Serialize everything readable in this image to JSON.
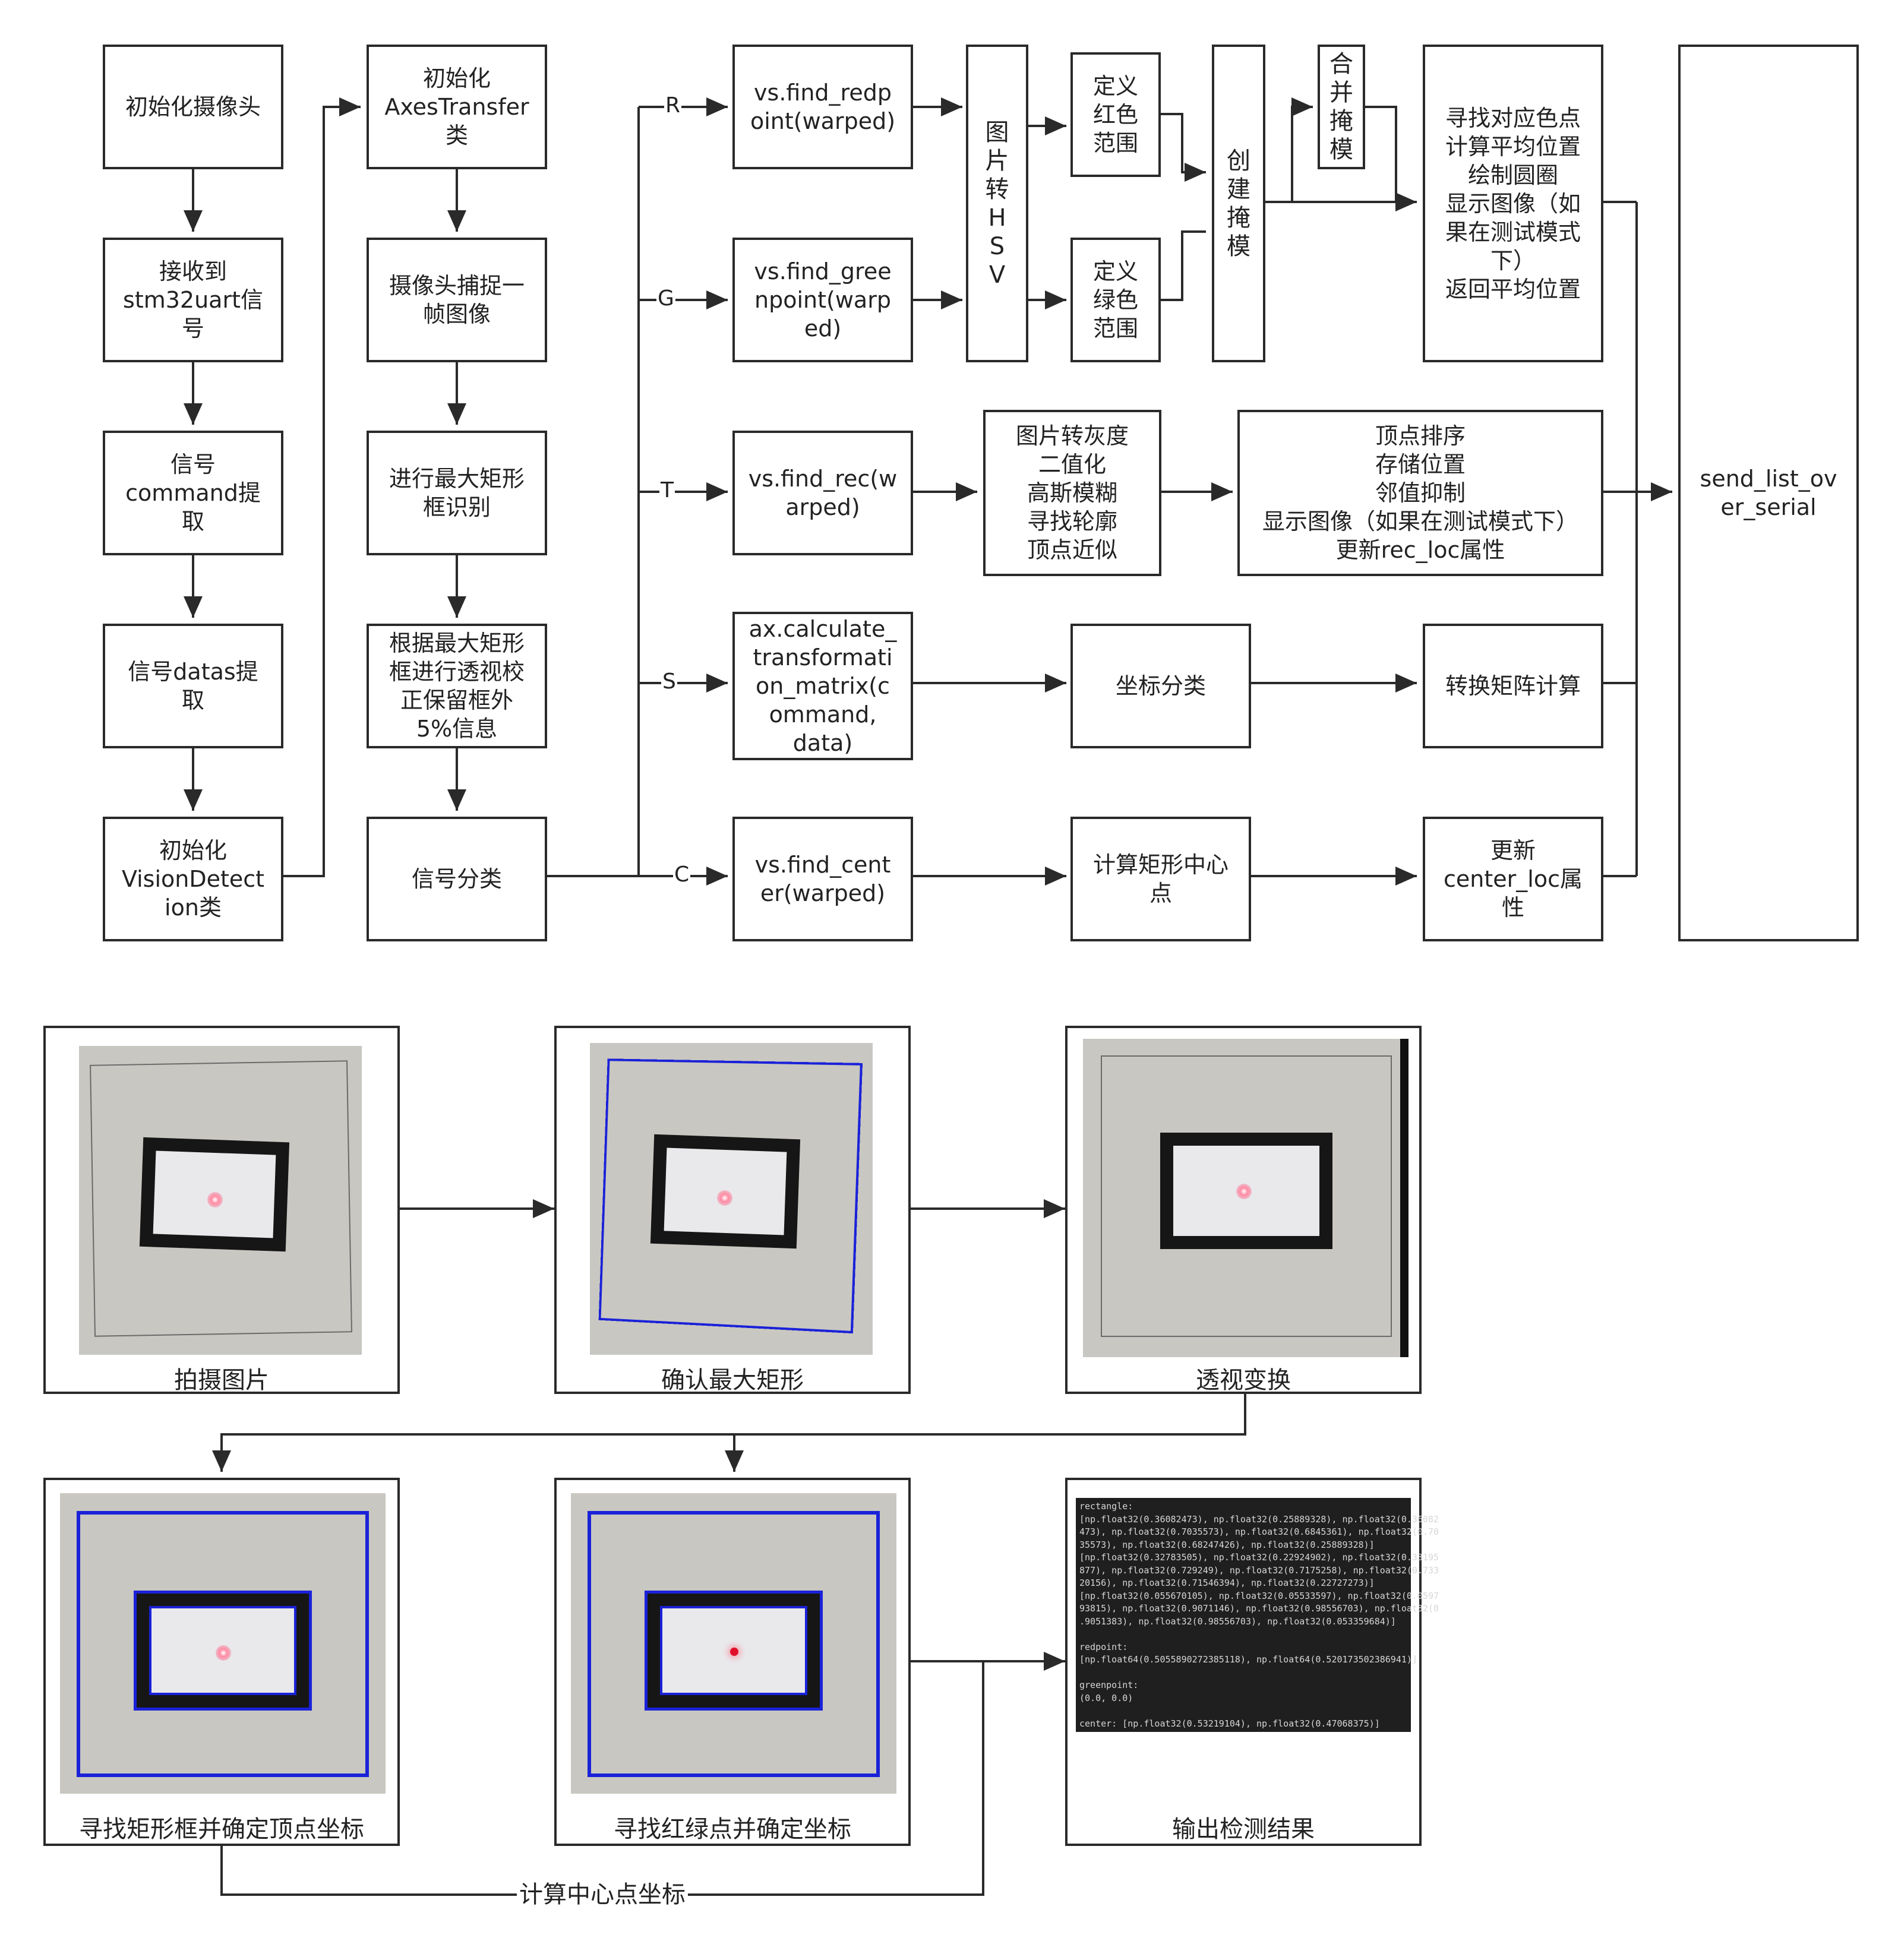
{
  "flow": {
    "init_camera": "初始化摄像头",
    "receive_uart": "接收到\nstm32uart信\n号",
    "extract_command": "信号\ncommand提\n取",
    "extract_datas": "信号datas提\n取",
    "init_vision": "初始化\nVisionDetect\nion类",
    "init_axes": "初始化\nAxesTransfer\n类",
    "capture_frame": "摄像头捕捉一\n帧图像",
    "max_rect": "进行最大矩形\n框识别",
    "perspective": "根据最大矩形\n框进行透视校\n正保留框外\n5%信息",
    "classify": "信号分类",
    "find_redpoint": "vs.find_redp\noint(warped)",
    "find_greenpoint": "vs.find_gree\nnpoint(warp\ned)",
    "find_rec": "vs.find_rec(w\narped)",
    "calc_matrix": "ax.calculate_\ntransformati\non_matrix(c\nommand,\ndata)",
    "find_center": "vs.find_cent\ner(warped)",
    "to_hsv": "图\n片\n转\nH\nS\nV",
    "red_range": "定义\n红色\n范围",
    "green_range": "定义\n绿色\n范围",
    "create_mask": "创\n建\n掩\n模",
    "merge_mask": "合\n并\n掩\n模",
    "find_color_points": "寻找对应色点\n计算平均位置\n绘制圆圈\n显示图像（如\n果在测试模式\n下）\n返回平均位置",
    "gray_steps": "图片转灰度\n二值化\n高斯模糊\n寻找轮廓\n顶点近似",
    "vertex_steps": "顶点排序\n存储位置\n邻值抑制\n显示图像（如果在测试模式下）\n更新rec_loc属性",
    "coord_classify": "坐标分类",
    "matrix_calc": "转换矩阵计算",
    "calc_rect_center": "计算矩形中心\n点",
    "update_center": "更新\ncenter_loc属\n性",
    "send_list": "send_list_ov\ner_serial",
    "branch_r": "R",
    "branch_g": "G",
    "branch_t": "T",
    "branch_s": "S",
    "branch_c": "C"
  },
  "pipeline": {
    "capture": "拍摄图片",
    "confirm_rect": "确认最大矩形",
    "transform": "透视变换",
    "find_rect_vertices": "寻找矩形框并确定顶点坐标",
    "find_points": "寻找红绿点并确定坐标",
    "output": "输出检测结果",
    "center_label": "计算中心点坐标"
  },
  "terminal_lines": [
    "rectangle:",
    "[np.float32(0.36082473), np.float32(0.25889328), np.float32(0.36082",
    "473), np.float32(0.7035573), np.float32(0.6845361), np.float32(0.70",
    "35573), np.float32(0.68247426), np.float32(0.25889328)]",
    "[np.float32(0.32783505), np.float32(0.22924902), np.float32(0.33195",
    "877), np.float32(0.729249), np.float32(0.7175258), np.float32(0.733",
    "20156), np.float32(0.71546394), np.float32(0.22727273)]",
    "[np.float32(0.055670105), np.float32(0.05533597), np.float32(0.0597",
    "93815), np.float32(0.9071146), np.float32(0.98556703), np.float32(0",
    ".9051383), np.float32(0.98556703), np.float32(0.053359684)]",
    "",
    "redpoint:",
    "[np.float64(0.5055890272385118), np.float64(0.520173502386941)]",
    "",
    "greenpoint:",
    "(0.0, 0.0)",
    "",
    "center: [np.float32(0.53219104), np.float32(0.47068375)]"
  ]
}
